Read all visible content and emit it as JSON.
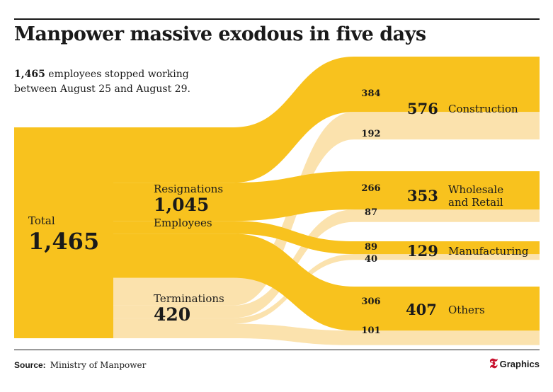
{
  "title": "Manpower massive exodous in five days",
  "subtitle": {
    "bold": "1,465",
    "text": "employees stopped working between August 25 and August 29."
  },
  "colors": {
    "flow_main": "#f8c21e",
    "flow_light": "#fbe2ad",
    "text": "#1a1a1a",
    "logo_accent": "#c8102e"
  },
  "chart_data": {
    "type": "sankey",
    "total": {
      "label": "Total",
      "value": "1,465"
    },
    "sources": [
      {
        "id": "resignations",
        "label": "Resignations",
        "value": "1,045",
        "sub": "Employees"
      },
      {
        "id": "terminations",
        "label": "Terminations",
        "value": "420"
      }
    ],
    "destinations": [
      {
        "id": "construction",
        "value": "576",
        "name": "Construction"
      },
      {
        "id": "wholesale",
        "value": "353",
        "name": "Wholesale and Retail",
        "lines": [
          "Wholesale",
          "and Retail"
        ]
      },
      {
        "id": "manufacturing",
        "value": "129",
        "name": "Manufacturing"
      },
      {
        "id": "others",
        "value": "407",
        "name": "Others"
      }
    ],
    "flows": [
      {
        "from": "resignations",
        "to": "construction",
        "value": 384
      },
      {
        "from": "terminations",
        "to": "construction",
        "value": 192
      },
      {
        "from": "resignations",
        "to": "wholesale",
        "value": 266
      },
      {
        "from": "terminations",
        "to": "wholesale",
        "value": 87
      },
      {
        "from": "resignations",
        "to": "manufacturing",
        "value": 89
      },
      {
        "from": "terminations",
        "to": "manufacturing",
        "value": 40
      },
      {
        "from": "resignations",
        "to": "others",
        "value": 306
      },
      {
        "from": "terminations",
        "to": "others",
        "value": 101
      }
    ]
  },
  "footer": {
    "source_label": "Source:",
    "source_text": "Ministry of Manpower",
    "logo_mark": "𝕿",
    "logo_text": "Graphics"
  }
}
